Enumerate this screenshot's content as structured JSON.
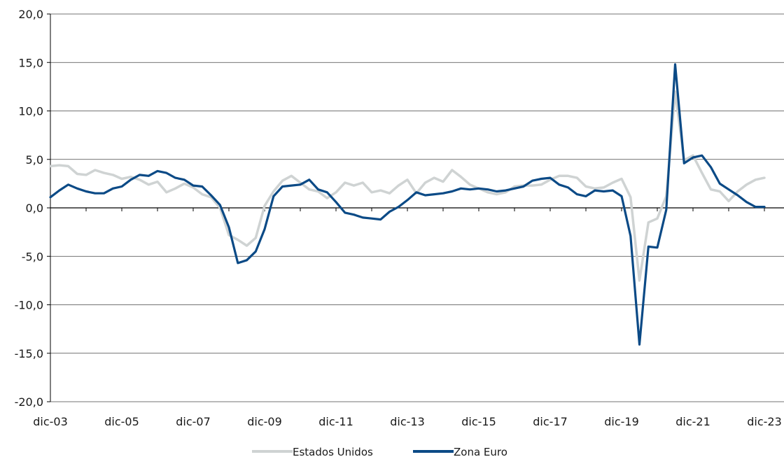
{
  "chart_data": {
    "type": "line",
    "title": "",
    "xlabel": "",
    "ylabel": "",
    "ylim": [
      -20,
      20
    ],
    "yticks": [
      "20,0",
      "15,0",
      "10,0",
      "5,0",
      "0,0",
      "-5,0",
      "-10,0",
      "-15,0",
      "-20,0"
    ],
    "xticks": [
      "dic-03",
      "dic-05",
      "dic-07",
      "dic-09",
      "dic-11",
      "dic-13",
      "dic-15",
      "dic-17",
      "dic-19",
      "dic-21",
      "dic-23"
    ],
    "grid": "horizontal",
    "legend_position": "bottom-center",
    "colors": {
      "Estados Unidos": "#cfd3d3",
      "Zona Euro": "#0b4a86"
    },
    "x": [
      "dic-03",
      "mar-04",
      "jun-04",
      "sep-04",
      "dic-04",
      "mar-05",
      "jun-05",
      "sep-05",
      "dic-05",
      "mar-06",
      "jun-06",
      "sep-06",
      "dic-06",
      "mar-07",
      "jun-07",
      "sep-07",
      "dic-07",
      "mar-08",
      "jun-08",
      "sep-08",
      "dic-08",
      "mar-09",
      "jun-09",
      "sep-09",
      "dic-09",
      "mar-10",
      "jun-10",
      "sep-10",
      "dic-10",
      "mar-11",
      "jun-11",
      "sep-11",
      "dic-11",
      "mar-12",
      "jun-12",
      "sep-12",
      "dic-12",
      "mar-13",
      "jun-13",
      "sep-13",
      "dic-13",
      "mar-14",
      "jun-14",
      "sep-14",
      "dic-14",
      "mar-15",
      "jun-15",
      "sep-15",
      "dic-15",
      "mar-16",
      "jun-16",
      "sep-16",
      "dic-16",
      "mar-17",
      "jun-17",
      "sep-17",
      "dic-17",
      "mar-18",
      "jun-18",
      "sep-18",
      "dic-18",
      "mar-19",
      "jun-19",
      "sep-19",
      "dic-19",
      "mar-20",
      "jun-20",
      "sep-20",
      "dic-20",
      "mar-21",
      "jun-21",
      "sep-21",
      "dic-21",
      "mar-22",
      "jun-22",
      "sep-22",
      "dic-22",
      "mar-23",
      "jun-23",
      "sep-23",
      "dic-23"
    ],
    "series": [
      {
        "name": "Estados Unidos",
        "values": [
          4.3,
          4.4,
          4.3,
          3.5,
          3.4,
          3.9,
          3.6,
          3.4,
          3.0,
          3.2,
          2.9,
          2.4,
          2.7,
          1.6,
          2.0,
          2.5,
          2.1,
          1.4,
          1.1,
          0.0,
          -2.8,
          -3.3,
          -3.9,
          -3.1,
          0.2,
          1.7,
          2.8,
          3.3,
          2.6,
          1.9,
          1.7,
          1.0,
          1.6,
          2.6,
          2.3,
          2.6,
          1.6,
          1.8,
          1.5,
          2.3,
          2.9,
          1.5,
          2.6,
          3.1,
          2.7,
          3.9,
          3.2,
          2.4,
          2.0,
          1.6,
          1.4,
          1.6,
          2.2,
          2.3,
          2.3,
          2.4,
          2.9,
          3.3,
          3.3,
          3.1,
          2.2,
          2.0,
          2.1,
          2.6,
          3.0,
          1.1,
          -7.5,
          -1.5,
          -1.1,
          1.2,
          12.0,
          4.9,
          5.4,
          3.6,
          1.9,
          1.7,
          0.7,
          1.7,
          2.4,
          2.9,
          3.1
        ]
      },
      {
        "name": "Zona Euro",
        "values": [
          1.1,
          1.8,
          2.4,
          2.0,
          1.7,
          1.5,
          1.5,
          2.0,
          2.2,
          2.9,
          3.4,
          3.3,
          3.8,
          3.6,
          3.1,
          2.9,
          2.3,
          2.2,
          1.3,
          0.3,
          -2.0,
          -5.7,
          -5.4,
          -4.5,
          -2.2,
          1.2,
          2.2,
          2.3,
          2.4,
          2.9,
          1.9,
          1.6,
          0.6,
          -0.5,
          -0.7,
          -1.0,
          -1.1,
          -1.2,
          -0.4,
          0.1,
          0.8,
          1.6,
          1.3,
          1.4,
          1.5,
          1.7,
          2.0,
          1.9,
          2.0,
          1.9,
          1.7,
          1.8,
          2.0,
          2.2,
          2.8,
          3.0,
          3.1,
          2.4,
          2.1,
          1.4,
          1.2,
          1.8,
          1.7,
          1.8,
          1.2,
          -2.9,
          -14.1,
          -4.0,
          -4.1,
          -0.2,
          14.8,
          4.6,
          5.2,
          5.4,
          4.2,
          2.5,
          1.9,
          1.3,
          0.6,
          0.1,
          0.1
        ]
      }
    ]
  }
}
